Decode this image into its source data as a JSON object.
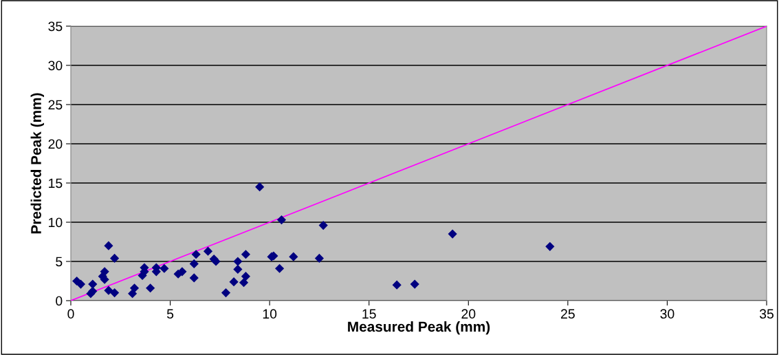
{
  "chart_data": {
    "type": "scatter",
    "xlabel": "Measured Peak (mm)",
    "ylabel": "Predicted Peak (mm)",
    "xlim": [
      0,
      35
    ],
    "ylim": [
      0,
      35
    ],
    "xticks": [
      0,
      5,
      10,
      15,
      20,
      25,
      30,
      35
    ],
    "yticks": [
      0,
      5,
      10,
      15,
      20,
      25,
      30,
      35
    ],
    "grid": "y",
    "marker": "diamond",
    "legend": false,
    "series": [
      {
        "color": "#000080",
        "x": [
          0.3,
          0.5,
          1.1,
          1.0,
          1.1,
          1.7,
          1.6,
          1.7,
          1.9,
          2.2,
          1.9,
          2.2,
          3.1,
          3.2,
          3.6,
          3.7,
          3.7,
          4.0,
          4.3,
          4.3,
          4.7,
          5.4,
          5.6,
          6.2,
          6.3,
          6.2,
          6.9,
          7.2,
          7.3,
          7.8,
          8.2,
          8.4,
          8.4,
          8.7,
          8.8,
          8.8,
          9.5,
          10.1,
          10.2,
          10.5,
          10.6,
          11.2,
          12.5,
          12.7,
          16.4,
          17.3,
          19.2,
          24.1
        ],
        "values": [
          2.5,
          2.1,
          2.1,
          0.9,
          1.2,
          3.7,
          3.1,
          2.7,
          7.0,
          5.4,
          1.3,
          1.0,
          0.9,
          1.6,
          3.2,
          4.2,
          3.7,
          1.6,
          4.2,
          3.7,
          4.1,
          3.4,
          3.7,
          4.7,
          5.9,
          2.9,
          6.3,
          5.3,
          5.0,
          1.0,
          2.4,
          5.0,
          4.0,
          2.3,
          5.9,
          3.1,
          14.5,
          5.6,
          5.7,
          4.1,
          10.3,
          5.6,
          5.4,
          9.6,
          2.0,
          2.1,
          8.5,
          6.9
        ]
      },
      {
        "type": "line",
        "color": "#ff00ff",
        "marker": "none",
        "x": [
          0,
          35
        ],
        "values": [
          0,
          35
        ]
      }
    ]
  }
}
